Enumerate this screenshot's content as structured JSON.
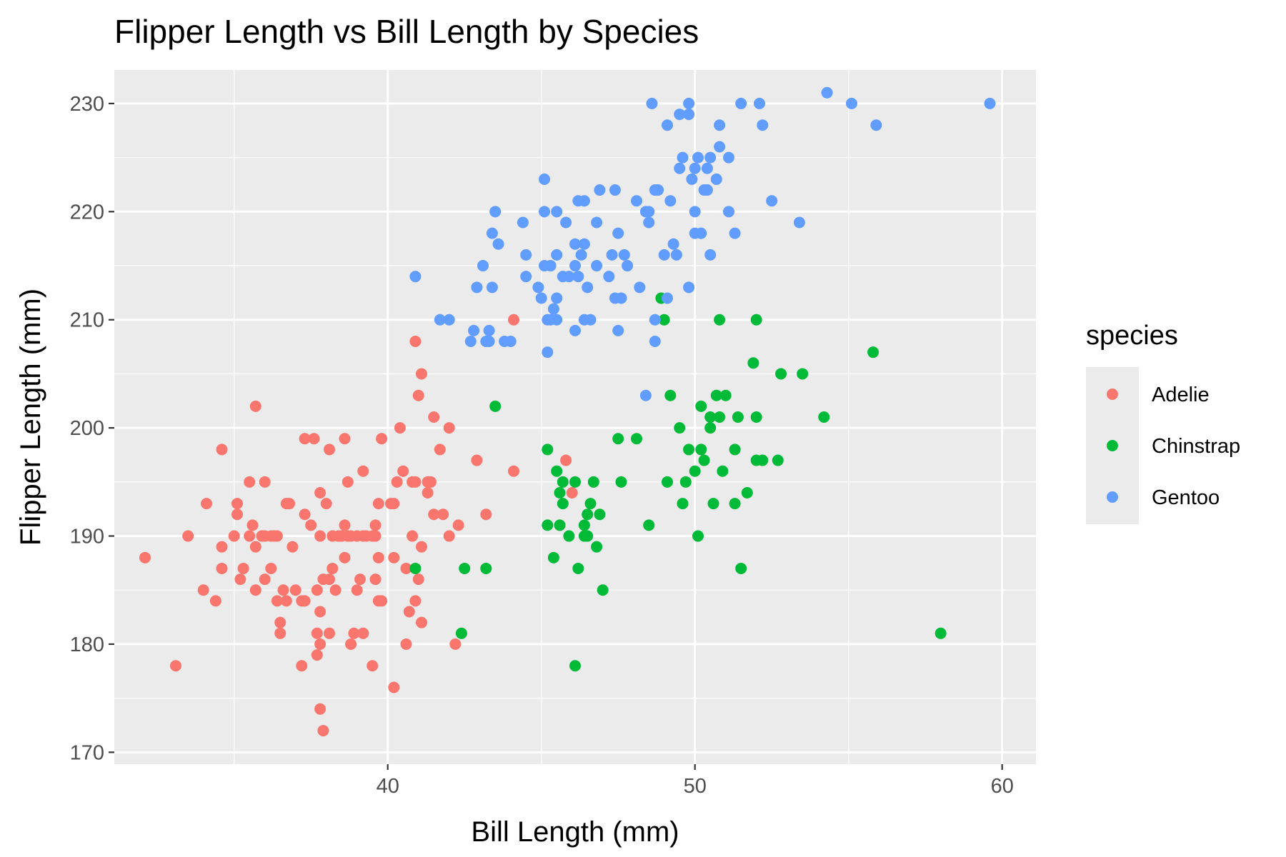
{
  "chart_data": {
    "type": "scatter",
    "title": "Flipper Length vs Bill Length by Species",
    "xlabel": "Bill Length (mm)",
    "ylabel": "Flipper Length (mm)",
    "xlim": [
      31.1,
      61.1
    ],
    "ylim": [
      168.9,
      233.1
    ],
    "x_ticks": [
      40,
      50,
      60
    ],
    "y_ticks": [
      170,
      180,
      190,
      200,
      210,
      220,
      230
    ],
    "x_tick_labels": [
      "40",
      "50",
      "60"
    ],
    "y_tick_labels": [
      "170",
      "180",
      "190",
      "200",
      "210",
      "220",
      "230"
    ],
    "grid": true,
    "legend": {
      "title": "species",
      "position": "right"
    },
    "series": [
      {
        "name": "Adelie",
        "color": "#F8766D",
        "points": [
          [
            32.1,
            188
          ],
          [
            33.1,
            178
          ],
          [
            33.5,
            190
          ],
          [
            34.0,
            185
          ],
          [
            34.1,
            193
          ],
          [
            34.4,
            184
          ],
          [
            34.6,
            187
          ],
          [
            34.6,
            189
          ],
          [
            34.6,
            198
          ],
          [
            35.0,
            190
          ],
          [
            35.1,
            192
          ],
          [
            35.1,
            193
          ],
          [
            35.2,
            186
          ],
          [
            35.3,
            187
          ],
          [
            35.5,
            195
          ],
          [
            35.5,
            190
          ],
          [
            35.6,
            191
          ],
          [
            35.7,
            185
          ],
          [
            35.7,
            189
          ],
          [
            35.7,
            202
          ],
          [
            35.9,
            190
          ],
          [
            36.0,
            186
          ],
          [
            36.0,
            190
          ],
          [
            36.0,
            195
          ],
          [
            36.2,
            187
          ],
          [
            36.2,
            190
          ],
          [
            36.3,
            190
          ],
          [
            36.4,
            184
          ],
          [
            36.5,
            181
          ],
          [
            36.5,
            182
          ],
          [
            36.6,
            185
          ],
          [
            36.7,
            184
          ],
          [
            36.7,
            193
          ],
          [
            36.8,
            193
          ],
          [
            36.9,
            189
          ],
          [
            37.0,
            185
          ],
          [
            37.2,
            178
          ],
          [
            37.3,
            184
          ],
          [
            37.3,
            192
          ],
          [
            37.3,
            199
          ],
          [
            37.6,
            199
          ],
          [
            37.7,
            179
          ],
          [
            37.7,
            185
          ],
          [
            37.7,
            181
          ],
          [
            37.8,
            174
          ],
          [
            37.8,
            180
          ],
          [
            37.8,
            183
          ],
          [
            37.8,
            190
          ],
          [
            37.8,
            194
          ],
          [
            37.9,
            172
          ],
          [
            37.9,
            186
          ],
          [
            38.0,
            193
          ],
          [
            38.1,
            181
          ],
          [
            38.1,
            198
          ],
          [
            38.2,
            187
          ],
          [
            38.2,
            190
          ],
          [
            38.3,
            185
          ],
          [
            38.5,
            190
          ],
          [
            38.6,
            188
          ],
          [
            38.6,
            199
          ],
          [
            38.7,
            195
          ],
          [
            38.8,
            180
          ],
          [
            38.9,
            181
          ],
          [
            39.0,
            185
          ],
          [
            39.1,
            186
          ],
          [
            39.2,
            181
          ],
          [
            39.2,
            196
          ],
          [
            39.5,
            178
          ],
          [
            39.6,
            186
          ],
          [
            39.7,
            184
          ],
          [
            39.7,
            193
          ],
          [
            39.8,
            184
          ],
          [
            40.2,
            176
          ],
          [
            40.2,
            188
          ],
          [
            40.3,
            195
          ],
          [
            40.6,
            180
          ],
          [
            40.6,
            187
          ],
          [
            40.7,
            183
          ],
          [
            40.8,
            190
          ],
          [
            40.9,
            184
          ],
          [
            40.9,
            208
          ],
          [
            41.1,
            182
          ],
          [
            41.1,
            189
          ],
          [
            41.1,
            205
          ],
          [
            41.3,
            194
          ],
          [
            41.4,
            195
          ],
          [
            41.5,
            201
          ],
          [
            41.8,
            192
          ],
          [
            42.0,
            190
          ],
          [
            42.2,
            180
          ],
          [
            42.3,
            191
          ],
          [
            42.9,
            197
          ],
          [
            43.2,
            192
          ],
          [
            44.1,
            196
          ],
          [
            44.1,
            210
          ],
          [
            45.6,
            191
          ],
          [
            45.8,
            197
          ],
          [
            46.0,
            194
          ],
          [
            40.1,
            193
          ],
          [
            40.4,
            200
          ],
          [
            40.5,
            196
          ],
          [
            40.8,
            195
          ],
          [
            41.0,
            203
          ],
          [
            41.0,
            186
          ],
          [
            41.5,
            192
          ],
          [
            41.7,
            198
          ],
          [
            42.0,
            200
          ],
          [
            41.3,
            195
          ],
          [
            39.6,
            190
          ],
          [
            39.6,
            191
          ],
          [
            38.6,
            191
          ],
          [
            38.8,
            190
          ],
          [
            39.0,
            190
          ],
          [
            39.2,
            190
          ],
          [
            39.5,
            190
          ],
          [
            39.8,
            199
          ],
          [
            38.4,
            190
          ],
          [
            38.7,
            190
          ],
          [
            39.3,
            190
          ],
          [
            37.2,
            184
          ],
          [
            36.4,
            190
          ],
          [
            37.5,
            191
          ],
          [
            38.1,
            186
          ],
          [
            39.7,
            188
          ],
          [
            40.9,
            195
          ],
          [
            40.2,
            193
          ]
        ]
      },
      {
        "name": "Chinstrap",
        "color": "#00BA38",
        "points": [
          [
            40.9,
            187
          ],
          [
            42.4,
            181
          ],
          [
            42.5,
            187
          ],
          [
            43.2,
            187
          ],
          [
            43.5,
            202
          ],
          [
            45.2,
            191
          ],
          [
            45.2,
            198
          ],
          [
            45.4,
            188
          ],
          [
            45.5,
            196
          ],
          [
            45.6,
            194
          ],
          [
            45.7,
            195
          ],
          [
            45.7,
            193
          ],
          [
            45.9,
            190
          ],
          [
            46.1,
            195
          ],
          [
            46.1,
            178
          ],
          [
            46.2,
            187
          ],
          [
            46.4,
            190
          ],
          [
            46.4,
            191
          ],
          [
            46.5,
            192
          ],
          [
            46.6,
            193
          ],
          [
            46.7,
            195
          ],
          [
            46.8,
            189
          ],
          [
            46.9,
            192
          ],
          [
            47.0,
            185
          ],
          [
            47.5,
            199
          ],
          [
            47.6,
            195
          ],
          [
            48.1,
            199
          ],
          [
            48.5,
            191
          ],
          [
            48.9,
            212
          ],
          [
            49.0,
            210
          ],
          [
            49.1,
            195
          ],
          [
            49.2,
            203
          ],
          [
            49.5,
            200
          ],
          [
            49.6,
            193
          ],
          [
            49.7,
            195
          ],
          [
            49.8,
            198
          ],
          [
            50.0,
            196
          ],
          [
            50.1,
            190
          ],
          [
            50.2,
            198
          ],
          [
            50.2,
            202
          ],
          [
            50.3,
            197
          ],
          [
            50.5,
            200
          ],
          [
            50.5,
            201
          ],
          [
            50.6,
            193
          ],
          [
            50.7,
            203
          ],
          [
            50.8,
            201
          ],
          [
            50.8,
            210
          ],
          [
            50.9,
            196
          ],
          [
            51.0,
            203
          ],
          [
            51.3,
            193
          ],
          [
            51.3,
            198
          ],
          [
            51.4,
            201
          ],
          [
            51.5,
            187
          ],
          [
            51.7,
            194
          ],
          [
            51.9,
            206
          ],
          [
            52.0,
            197
          ],
          [
            52.0,
            201
          ],
          [
            52.0,
            210
          ],
          [
            52.2,
            197
          ],
          [
            52.7,
            197
          ],
          [
            52.8,
            205
          ],
          [
            53.5,
            205
          ],
          [
            54.2,
            201
          ],
          [
            55.8,
            207
          ],
          [
            58.0,
            181
          ],
          [
            45.6,
            191
          ],
          [
            46.5,
            190
          ]
        ]
      },
      {
        "name": "Gentoo",
        "color": "#619CFF",
        "points": [
          [
            40.9,
            214
          ],
          [
            41.7,
            210
          ],
          [
            42.0,
            210
          ],
          [
            42.7,
            208
          ],
          [
            42.8,
            209
          ],
          [
            42.9,
            213
          ],
          [
            43.1,
            215
          ],
          [
            43.2,
            208
          ],
          [
            43.3,
            209
          ],
          [
            43.3,
            208
          ],
          [
            43.4,
            213
          ],
          [
            43.4,
            218
          ],
          [
            43.5,
            220
          ],
          [
            43.6,
            217
          ],
          [
            43.8,
            208
          ],
          [
            44.0,
            208
          ],
          [
            44.4,
            219
          ],
          [
            44.5,
            214
          ],
          [
            44.5,
            216
          ],
          [
            44.9,
            213
          ],
          [
            45.0,
            212
          ],
          [
            45.1,
            215
          ],
          [
            45.1,
            220
          ],
          [
            45.2,
            207
          ],
          [
            45.2,
            210
          ],
          [
            45.3,
            210
          ],
          [
            45.3,
            215
          ],
          [
            45.4,
            211
          ],
          [
            45.5,
            212
          ],
          [
            45.5,
            210
          ],
          [
            45.5,
            216
          ],
          [
            45.5,
            220
          ],
          [
            45.7,
            214
          ],
          [
            45.8,
            219
          ],
          [
            45.9,
            214
          ],
          [
            46.1,
            217
          ],
          [
            46.1,
            215
          ],
          [
            46.1,
            209
          ],
          [
            46.2,
            221
          ],
          [
            46.2,
            214
          ],
          [
            46.3,
            216
          ],
          [
            46.4,
            221
          ],
          [
            46.4,
            217
          ],
          [
            46.4,
            210
          ],
          [
            46.5,
            213
          ],
          [
            46.6,
            210
          ],
          [
            46.8,
            215
          ],
          [
            46.8,
            219
          ],
          [
            46.9,
            222
          ],
          [
            47.2,
            214
          ],
          [
            47.3,
            216
          ],
          [
            47.4,
            212
          ],
          [
            47.4,
            222
          ],
          [
            47.5,
            209
          ],
          [
            47.5,
            218
          ],
          [
            47.6,
            212
          ],
          [
            47.7,
            216
          ],
          [
            47.8,
            215
          ],
          [
            48.1,
            221
          ],
          [
            48.2,
            213
          ],
          [
            48.4,
            220
          ],
          [
            48.4,
            203
          ],
          [
            48.5,
            219
          ],
          [
            48.6,
            230
          ],
          [
            48.7,
            208
          ],
          [
            48.7,
            210
          ],
          [
            48.7,
            222
          ],
          [
            48.8,
            222
          ],
          [
            49.0,
            216
          ],
          [
            49.1,
            228
          ],
          [
            49.1,
            212
          ],
          [
            49.2,
            221
          ],
          [
            49.3,
            217
          ],
          [
            49.4,
            216
          ],
          [
            49.5,
            229
          ],
          [
            49.5,
            224
          ],
          [
            49.6,
            225
          ],
          [
            49.8,
            230
          ],
          [
            49.8,
            229
          ],
          [
            49.8,
            213
          ],
          [
            49.9,
            223
          ],
          [
            50.0,
            220
          ],
          [
            50.0,
            224
          ],
          [
            50.0,
            218
          ],
          [
            50.1,
            225
          ],
          [
            50.2,
            218
          ],
          [
            50.3,
            222
          ],
          [
            50.4,
            224
          ],
          [
            50.5,
            225
          ],
          [
            50.5,
            216
          ],
          [
            50.7,
            223
          ],
          [
            50.8,
            228
          ],
          [
            50.8,
            226
          ],
          [
            51.1,
            225
          ],
          [
            51.1,
            220
          ],
          [
            51.3,
            218
          ],
          [
            51.5,
            230
          ],
          [
            52.1,
            230
          ],
          [
            52.2,
            228
          ],
          [
            52.5,
            221
          ],
          [
            53.4,
            219
          ],
          [
            54.3,
            231
          ],
          [
            55.1,
            230
          ],
          [
            55.9,
            228
          ],
          [
            59.6,
            230
          ],
          [
            45.1,
            223
          ],
          [
            50.4,
            222
          ],
          [
            48.5,
            220
          ]
        ]
      }
    ]
  }
}
